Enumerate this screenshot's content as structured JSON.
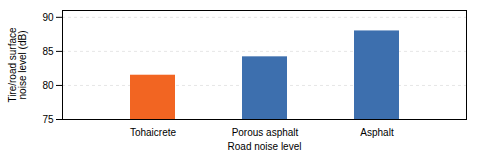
{
  "chart_data": {
    "type": "bar",
    "categories": [
      "Tohaicrete",
      "Porous asphalt",
      "Asphalt"
    ],
    "values": [
      81.5,
      84.2,
      88.0
    ],
    "colors": [
      "#f26522",
      "#3d6fae",
      "#3d6fae"
    ],
    "xlabel": "Road noise level",
    "ylabel": "Tire/road surface\nnoise level (dB)",
    "ylim": [
      75,
      91
    ],
    "yticks": [
      75,
      80,
      85,
      90
    ],
    "grid": true
  }
}
